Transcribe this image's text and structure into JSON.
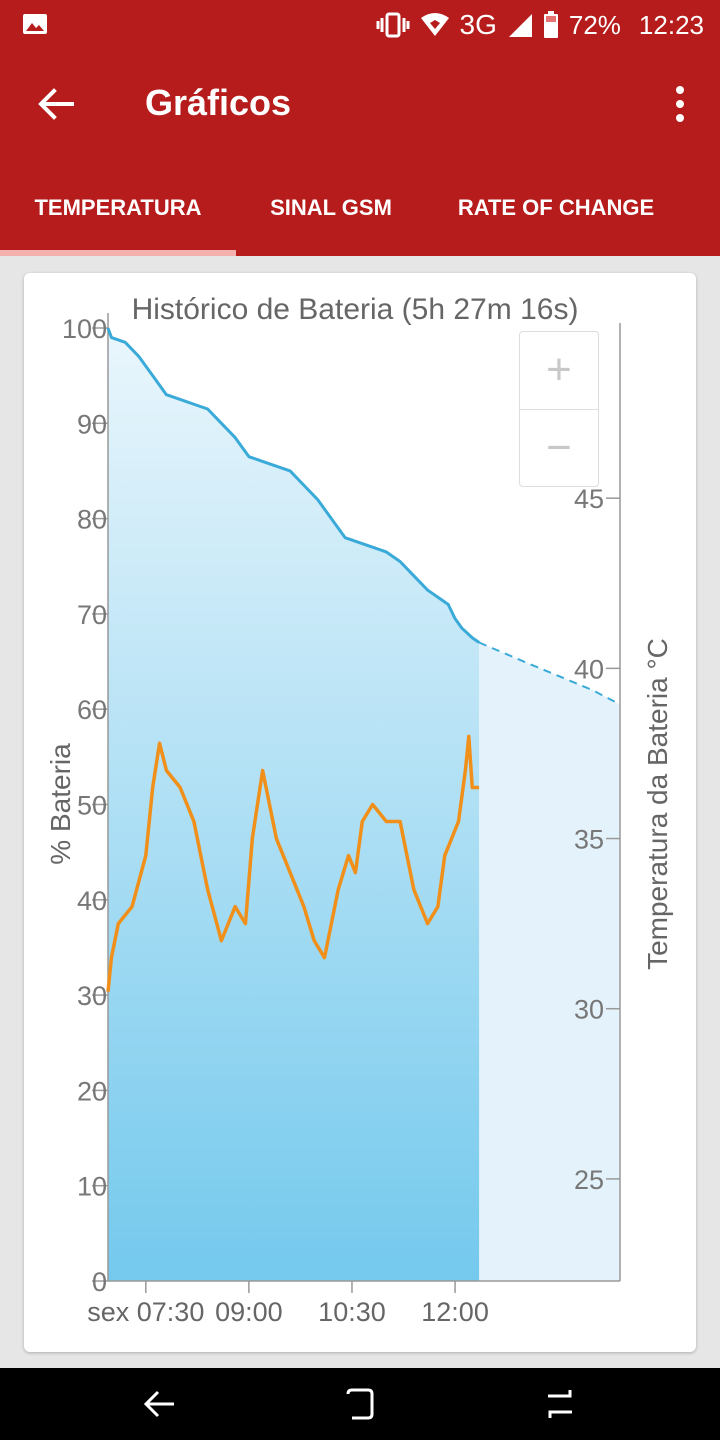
{
  "status_bar": {
    "battery_percent": "72%",
    "time": "12:23",
    "network": "3G"
  },
  "app_bar": {
    "title": "Gráficos"
  },
  "tabs": [
    {
      "label": "TEMPERATURA",
      "selected": true
    },
    {
      "label": "SINAL GSM",
      "selected": false
    },
    {
      "label": "RATE OF CHANGE",
      "selected": false
    }
  ],
  "chart_data": {
    "type": "line",
    "title": "Histórico de Bateria (5h 27m 16s)",
    "ylabel": "% Bateria",
    "y2label": "Temperatura da Bateria °C",
    "ylim": [
      0,
      100
    ],
    "y2lim": [
      22,
      50
    ],
    "yticks": [
      0,
      10,
      20,
      30,
      40,
      50,
      60,
      70,
      80,
      90,
      100
    ],
    "y2ticks": [
      25,
      30,
      35,
      40,
      45
    ],
    "xticks": [
      {
        "t": 7.5,
        "label": "sex 07:30"
      },
      {
        "t": 9.0,
        "label": "09:00"
      },
      {
        "t": 10.5,
        "label": "10:30"
      },
      {
        "t": 12.0,
        "label": "12:00"
      }
    ],
    "xlim": [
      6.95,
      14.4
    ],
    "colors": {
      "battery": "#3aaad8",
      "temperature": "#f0901a",
      "fill_top": "#eaf6fc",
      "fill_bottom": "#74c9ed"
    },
    "series": [
      {
        "name": "% Bateria",
        "axis": "left",
        "x": [
          6.95,
          7.0,
          7.2,
          7.4,
          7.6,
          7.8,
          8.0,
          8.2,
          8.4,
          8.6,
          8.8,
          9.0,
          9.2,
          9.4,
          9.6,
          9.8,
          10.0,
          10.2,
          10.4,
          10.6,
          10.8,
          11.0,
          11.2,
          11.4,
          11.6,
          11.8,
          11.9,
          12.0,
          12.1,
          12.25,
          12.35
        ],
        "values": [
          100,
          99,
          98.5,
          97,
          95,
          93,
          92.5,
          92,
          91.5,
          90,
          88.5,
          86.5,
          86,
          85.5,
          85,
          83.5,
          82,
          80,
          78,
          77.5,
          77,
          76.5,
          75.5,
          74,
          72.5,
          71.5,
          71,
          69.5,
          68.5,
          67.5,
          67
        ]
      },
      {
        "name": "% Bateria (estimativa)",
        "axis": "left",
        "dashed": true,
        "x": [
          12.35,
          13.0,
          13.5,
          14.0,
          14.4
        ],
        "values": [
          67,
          65,
          63.5,
          62,
          60.5
        ]
      },
      {
        "name": "Temperatura da Bateria °C",
        "axis": "right",
        "x": [
          6.95,
          7.0,
          7.1,
          7.3,
          7.5,
          7.6,
          7.7,
          7.8,
          8.0,
          8.2,
          8.4,
          8.6,
          8.8,
          8.95,
          9.05,
          9.2,
          9.4,
          9.6,
          9.8,
          9.95,
          10.1,
          10.3,
          10.45,
          10.55,
          10.65,
          10.8,
          11.0,
          11.2,
          11.4,
          11.6,
          11.75,
          11.85,
          11.95,
          12.05,
          12.15,
          12.2,
          12.25,
          12.35
        ],
        "values": [
          30.5,
          31.5,
          32.5,
          33,
          34.5,
          36.5,
          37.8,
          37,
          36.5,
          35.5,
          33.5,
          32,
          33,
          32.5,
          35,
          37,
          35,
          34,
          33,
          32,
          31.5,
          33.5,
          34.5,
          34,
          35.5,
          36,
          35.5,
          35.5,
          33.5,
          32.5,
          33,
          34.5,
          35,
          35.5,
          37,
          38,
          36.5,
          36.5
        ]
      }
    ]
  }
}
